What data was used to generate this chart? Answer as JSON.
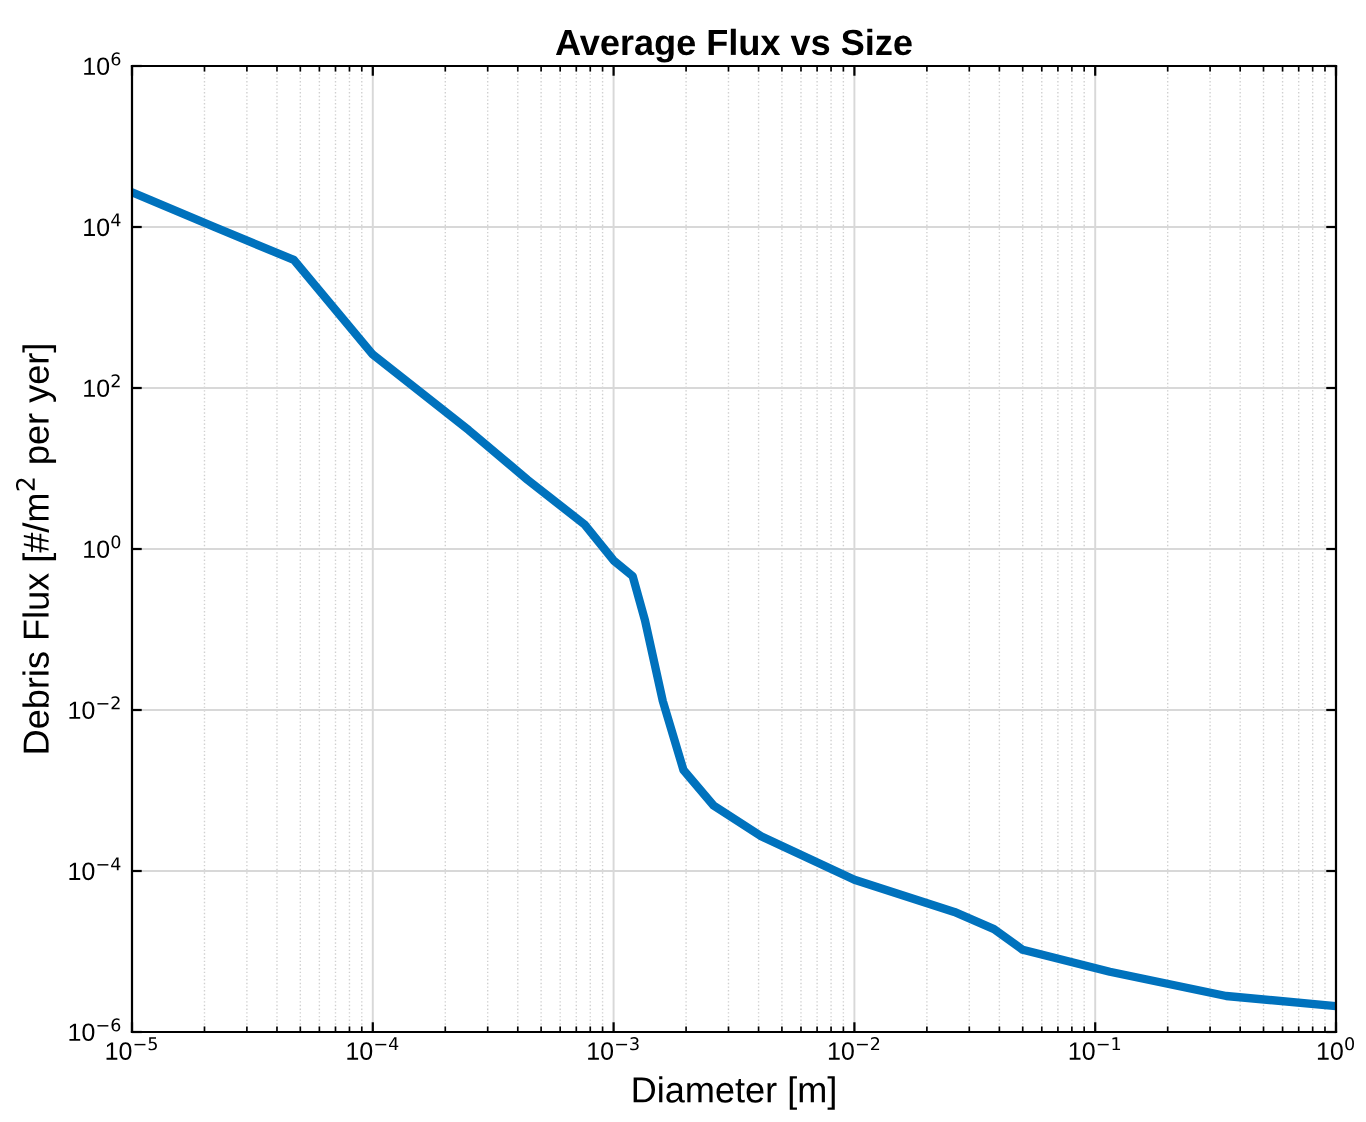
{
  "chart_data": {
    "type": "line",
    "title": "Average Flux vs Size",
    "xlabel": "Diameter [m]",
    "ylabel": "Debris Flux [#/m$^{2}$ per yer]",
    "log": "xy",
    "grid": true,
    "marker": "none",
    "line_style": "solid",
    "xlim": [
      1e-05,
      1
    ],
    "ylim": [
      1e-06,
      1000000.0
    ],
    "xticks": [
      {
        "value": 1e-05,
        "label": "10$^{−5}$"
      },
      {
        "value": 0.0001,
        "label": "10$^{−4}$"
      },
      {
        "value": 0.001,
        "label": "10$^{−3}$"
      },
      {
        "value": 0.01,
        "label": "10$^{−2}$"
      },
      {
        "value": 0.1,
        "label": "10$^{−1}$"
      },
      {
        "value": 1,
        "label": "10$^{0}$"
      }
    ],
    "yticks": [
      {
        "value": 1e-06,
        "label": "10$^{−6}$"
      },
      {
        "value": 0.0001,
        "label": "10$^{−4}$"
      },
      {
        "value": 0.01,
        "label": "10$^{−2}$"
      },
      {
        "value": 1,
        "label": "10$^{0}$"
      },
      {
        "value": 100,
        "label": "10$^{2}$"
      },
      {
        "value": 10000.0,
        "label": "10$^{4}$"
      },
      {
        "value": 1000000.0,
        "label": "10$^{6}$"
      }
    ],
    "x": [
      1e-05,
      2.2e-05,
      4.7e-05,
      0.0001,
      0.00025,
      0.00044,
      0.00076,
      0.001,
      0.0012,
      0.00135,
      0.0016,
      0.00195,
      0.0026,
      0.0041,
      0.01,
      0.026,
      0.038,
      0.05,
      0.115,
      0.35,
      1
    ],
    "series": [
      {
        "color": "#0072bd",
        "values": [
          27000.0,
          10000.0,
          3900.0,
          260.0,
          30,
          7.2,
          2.0,
          0.72,
          0.46,
          0.13,
          0.013,
          0.0018,
          0.00065,
          0.00027,
          7.8e-05,
          3.1e-05,
          1.9e-05,
          1.05e-05,
          5.6e-06,
          2.8e-06,
          2.1e-06
        ]
      }
    ]
  }
}
